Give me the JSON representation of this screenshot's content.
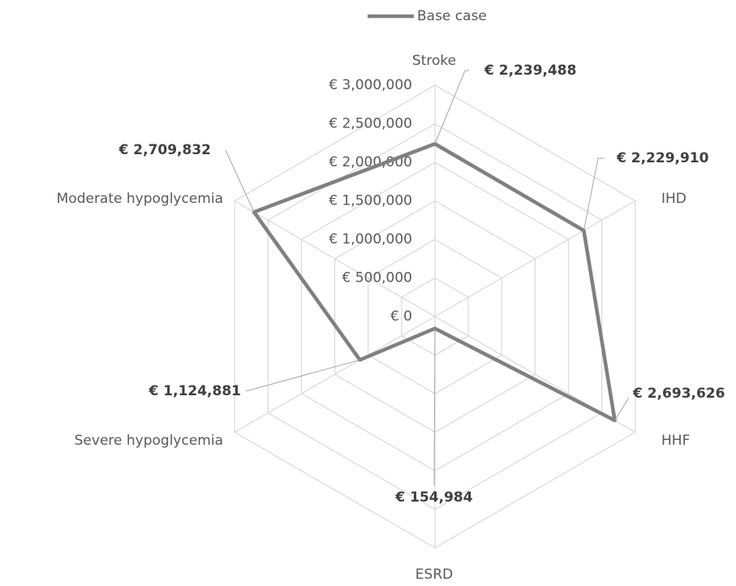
{
  "chart_data": {
    "type": "radar",
    "categories": [
      "Stroke",
      "IHD",
      "HHF",
      "ESRD",
      "Severe hypoglycemia",
      "Moderate hypoglycemia"
    ],
    "series": [
      {
        "name": "Base case",
        "color": "#808080",
        "values": [
          2239488,
          2229910,
          2693626,
          154984,
          1124881,
          2709832
        ],
        "value_labels": [
          "€ 2,239,488",
          "€ 2,229,910",
          "€ 2,693,626",
          "€ 154,984",
          "€ 1,124,881",
          "€ 2,709,832"
        ]
      }
    ],
    "ylim": [
      0,
      3000000
    ],
    "yticks": [
      {
        "value": 0,
        "label": "€ 0"
      },
      {
        "value": 500000,
        "label": "€ 500,000"
      },
      {
        "value": 1000000,
        "label": "€ 1,000,000"
      },
      {
        "value": 1500000,
        "label": "€ 1,500,000"
      },
      {
        "value": 2000000,
        "label": "€ 2,000,000"
      },
      {
        "value": 2500000,
        "label": "€ 2,500,000"
      },
      {
        "value": 3000000,
        "label": "€ 3,000,000"
      }
    ],
    "grid": true,
    "legend": "top"
  }
}
